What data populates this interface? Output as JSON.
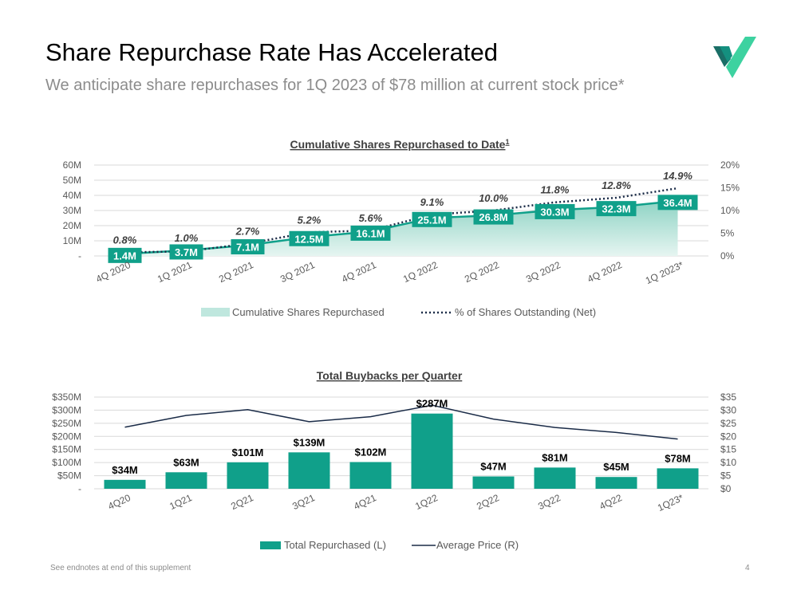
{
  "header": {
    "title": "Share Repurchase Rate Has Accelerated",
    "subtitle": "We anticipate share repurchases for 1Q 2023 of $78 million at current stock price*",
    "logo_name": "company-logo"
  },
  "colors": {
    "teal": "#10A08A",
    "teal_light": "#BFE7DE",
    "navy": "#1A2B47",
    "grid": "#D9D9D9",
    "axis_text": "#595959"
  },
  "chart_data": [
    {
      "type": "area",
      "title": "Cumulative Shares Repurchased to Date",
      "title_superscript": "1",
      "categories": [
        "4Q 2020",
        "1Q 2021",
        "2Q 2021",
        "3Q 2021",
        "4Q 2021",
        "1Q 2022",
        "2Q 2022",
        "3Q 2022",
        "4Q 2022",
        "1Q 2023*"
      ],
      "series": [
        {
          "name": "Cumulative Shares Repurchased",
          "axis": "left",
          "values": [
            1.4,
            3.7,
            7.1,
            12.5,
            16.1,
            25.1,
            26.8,
            30.3,
            32.3,
            36.4
          ],
          "labels": [
            "1.4M",
            "3.7M",
            "7.1M",
            "12.5M",
            "16.1M",
            "25.1M",
            "26.8M",
            "30.3M",
            "32.3M",
            "36.4M"
          ]
        },
        {
          "name": "% of Shares Outstanding (Net)",
          "axis": "right",
          "style": "dotted-line",
          "values": [
            0.8,
            1.0,
            2.7,
            5.2,
            5.6,
            9.1,
            10.0,
            11.8,
            12.8,
            14.9
          ],
          "labels": [
            "0.8%",
            "1.0%",
            "2.7%",
            "5.2%",
            "5.6%",
            "9.1%",
            "10.0%",
            "11.8%",
            "12.8%",
            "14.9%"
          ]
        }
      ],
      "ylim_left": [
        0,
        60
      ],
      "yticks_left": [
        "-",
        "10M",
        "20M",
        "30M",
        "40M",
        "50M",
        "60M"
      ],
      "ylim_right": [
        0,
        20
      ],
      "yticks_right": [
        "0%",
        "5%",
        "10%",
        "15%",
        "20%"
      ],
      "legend": [
        "Cumulative Shares Repurchased",
        "% of Shares Outstanding (Net)"
      ],
      "legend_position": "bottom",
      "grid": true
    },
    {
      "type": "bar",
      "title": "Total Buybacks per Quarter",
      "categories": [
        "4Q20",
        "1Q21",
        "2Q21",
        "3Q21",
        "4Q21",
        "1Q22",
        "2Q22",
        "3Q22",
        "4Q22",
        "1Q23*"
      ],
      "series": [
        {
          "name": "Total Repurchased (L)",
          "axis": "left",
          "values": [
            34,
            63,
            101,
            139,
            102,
            287,
            47,
            81,
            45,
            78
          ],
          "labels": [
            "$34M",
            "$63M",
            "$101M",
            "$139M",
            "$102M",
            "$287M",
            "$47M",
            "$81M",
            "$45M",
            "$78M"
          ]
        },
        {
          "name": "Average Price (R)",
          "axis": "right",
          "style": "line",
          "values": [
            23.5,
            28,
            30.2,
            25.6,
            27.5,
            31.9,
            26.6,
            23.4,
            21.5,
            19
          ]
        }
      ],
      "ylim_left": [
        0,
        350
      ],
      "yticks_left": [
        "-",
        "$50M",
        "$100M",
        "$150M",
        "$200M",
        "$250M",
        "$300M",
        "$350M"
      ],
      "ylim_right": [
        0,
        35
      ],
      "yticks_right": [
        "$0",
        "$5",
        "$10",
        "$15",
        "$20",
        "$25",
        "$30",
        "$35"
      ],
      "legend": [
        "Total Repurchased (L)",
        "Average Price (R)"
      ],
      "legend_position": "bottom",
      "grid": true
    }
  ],
  "footer": {
    "note": "See endnotes at end of this supplement",
    "page": "4"
  }
}
